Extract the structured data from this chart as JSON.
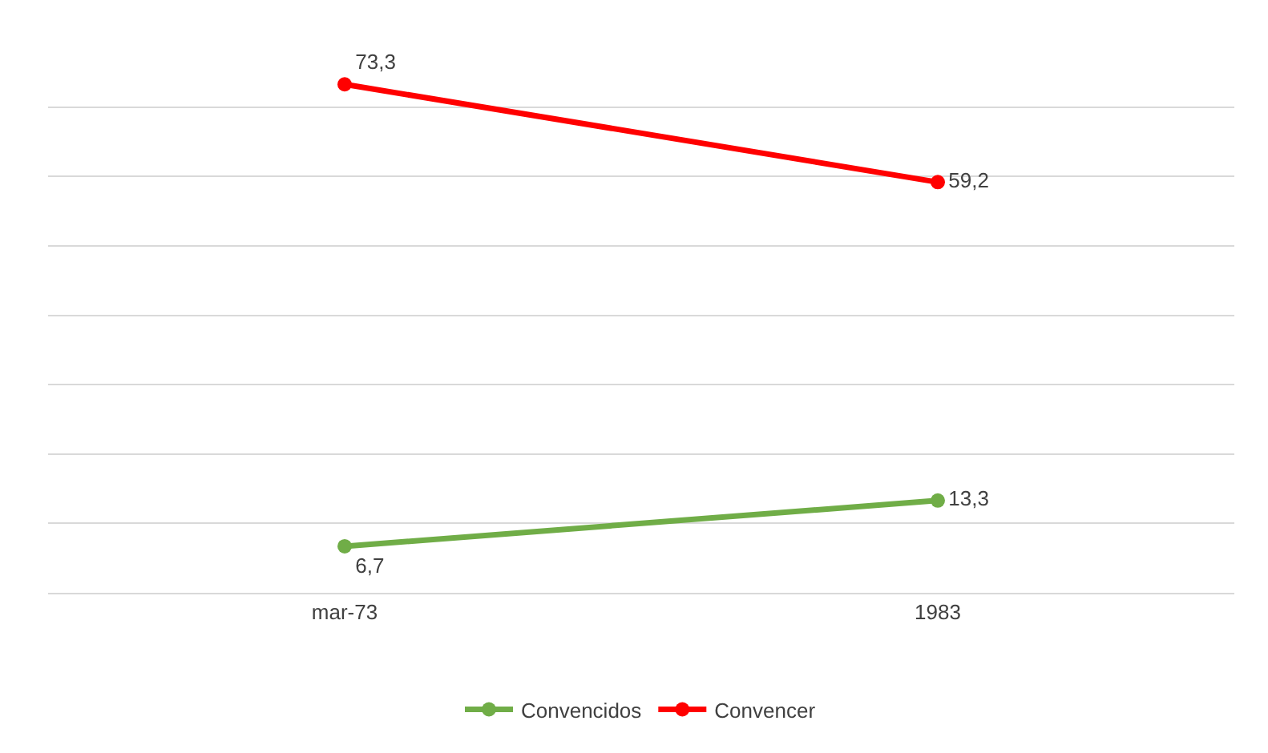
{
  "chart_data": {
    "type": "line",
    "categories": [
      "mar-73",
      "1983"
    ],
    "series": [
      {
        "name": "Convencidos",
        "color": "#70ad47",
        "values": [
          6.7,
          13.3
        ],
        "value_labels": [
          "6,7",
          "13,3"
        ]
      },
      {
        "name": "Convencer",
        "color": "#ff0000",
        "values": [
          73.3,
          59.2
        ],
        "value_labels": [
          "73,3",
          "59,2"
        ]
      }
    ],
    "grid": "y",
    "legend": "bottom",
    "marker": "circle",
    "line_style": "solid",
    "tick_labels": "x"
  }
}
